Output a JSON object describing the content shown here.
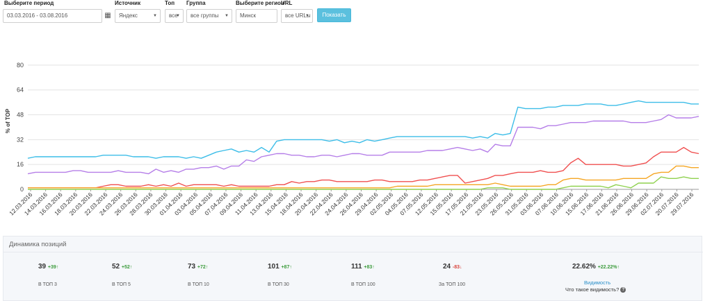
{
  "filters": {
    "period": {
      "label": "Выберите период",
      "value": "03.03.2016 - 03.08.2016",
      "calendar_icon": "calendar-icon"
    },
    "source": {
      "label": "Источник",
      "value": "Яндекс"
    },
    "top": {
      "label": "Топ",
      "value": "все"
    },
    "group": {
      "label": "Группа",
      "value": "все группы"
    },
    "region": {
      "label": "Выберите регион",
      "value": "Минск"
    },
    "url": {
      "label": "URL",
      "value": "все URLы"
    },
    "show_button": "Показать"
  },
  "chart_data": {
    "type": "line",
    "title": "",
    "xlabel": "",
    "ylabel": "% of TOP",
    "ylim": [
      0,
      88
    ],
    "yticks": [
      0,
      16,
      32,
      48,
      64,
      80
    ],
    "grid": true,
    "legend": "none",
    "xtick_labels": [
      "12.03.2016",
      "14.03.2016",
      "16.03.2016",
      "18.03.2016",
      "20.03.2016",
      "22.03.2016",
      "24.03.2016",
      "26.03.2016",
      "28.03.2016",
      "30.03.2016",
      "01.04.2016",
      "03.04.2016",
      "05.04.2016",
      "07.04.2016",
      "09.04.2016",
      "11.04.2016",
      "13.04.2016",
      "15.04.2016",
      "18.04.2016",
      "20.04.2016",
      "22.04.2016",
      "24.04.2016",
      "26.04.2016",
      "29.04.2016",
      "02.05.2016",
      "04.05.2016",
      "07.05.2016",
      "12.05.2016",
      "15.05.2016",
      "17.05.2016",
      "21.05.2016",
      "23.05.2016",
      "26.05.2016",
      "31.05.2016",
      "03.06.2016",
      "07.06.2016",
      "10.06.2016",
      "15.06.2016",
      "17.06.2016",
      "21.06.2016",
      "26.06.2016",
      "29.06.2016",
      "02.07.2016",
      "20.07.2016",
      "29.07.2016"
    ],
    "x": [
      0,
      1,
      2,
      3,
      4,
      5,
      6,
      7,
      8,
      9,
      10,
      11,
      12,
      13,
      14,
      15,
      16,
      17,
      18,
      19,
      20,
      21,
      22,
      23,
      24,
      25,
      26,
      27,
      28,
      29,
      30,
      31,
      32,
      33,
      34,
      35,
      36,
      37,
      38,
      39,
      40,
      41,
      42,
      43,
      44,
      45,
      46,
      47,
      48,
      49,
      50,
      51,
      52,
      53,
      54,
      55,
      56,
      57,
      58,
      59,
      60,
      61,
      62,
      63,
      64,
      65,
      66,
      67,
      68,
      69,
      70,
      71,
      72,
      73,
      74,
      75,
      76,
      77,
      78,
      79,
      80,
      81,
      82,
      83,
      84,
      85,
      86,
      87,
      88,
      89
    ],
    "series": [
      {
        "color": "#3cbde8",
        "values": [
          20,
          21,
          21,
          21,
          21,
          21,
          21,
          21,
          21,
          21,
          22,
          22,
          22,
          22,
          21,
          21,
          21,
          20,
          21,
          21,
          21,
          20,
          21,
          20,
          22,
          24,
          25,
          26,
          24,
          25,
          24,
          27,
          24,
          31,
          32,
          32,
          32,
          32,
          32,
          32,
          31,
          32,
          30,
          31,
          30,
          32,
          31,
          32,
          33,
          34,
          34,
          34,
          34,
          34,
          34,
          34,
          34,
          34,
          34,
          33,
          34,
          33,
          36,
          35,
          36,
          53,
          52,
          52,
          52,
          53,
          53,
          54,
          54,
          54,
          55,
          55,
          55,
          54,
          54,
          55,
          56,
          57,
          56,
          56,
          56,
          56,
          56,
          56,
          55,
          55
        ]
      },
      {
        "color": "#b57ee8",
        "values": [
          10,
          11,
          11,
          11,
          11,
          11,
          12,
          12,
          11,
          11,
          11,
          11,
          12,
          11,
          11,
          11,
          10,
          13,
          11,
          12,
          11,
          13,
          13,
          14,
          14,
          15,
          13,
          15,
          15,
          19,
          18,
          21,
          22,
          23,
          23,
          22,
          22,
          21,
          21,
          22,
          22,
          21,
          22,
          23,
          23,
          22,
          22,
          22,
          24,
          24,
          24,
          24,
          24,
          25,
          25,
          25,
          26,
          27,
          26,
          25,
          26,
          24,
          29,
          28,
          28,
          40,
          40,
          40,
          39,
          41,
          41,
          42,
          43,
          43,
          43,
          44,
          44,
          44,
          44,
          44,
          43,
          43,
          43,
          44,
          45,
          48,
          46,
          46,
          46,
          47
        ]
      },
      {
        "color": "#f04f4f",
        "values": [
          1,
          1,
          1,
          1,
          1,
          1,
          1,
          1,
          1,
          1,
          2,
          3,
          3,
          2,
          2,
          2,
          3,
          2,
          3,
          2,
          4,
          2,
          3,
          3,
          3,
          3,
          2,
          3,
          2,
          2,
          2,
          2,
          2,
          3,
          3,
          5,
          4,
          5,
          5,
          6,
          6,
          5,
          5,
          5,
          5,
          5,
          6,
          6,
          5,
          5,
          5,
          5,
          6,
          6,
          7,
          8,
          9,
          9,
          4,
          5,
          6,
          7,
          9,
          9,
          10,
          11,
          11,
          11,
          12,
          11,
          11,
          12,
          17,
          20,
          16,
          16,
          16,
          16,
          16,
          15,
          15,
          16,
          17,
          21,
          24,
          24,
          24,
          27,
          24,
          23
        ]
      },
      {
        "color": "#f5a623",
        "values": [
          1,
          1,
          1,
          1,
          1,
          1,
          1,
          1,
          1,
          1,
          1,
          1,
          1,
          1,
          1,
          1,
          1,
          1,
          1,
          1,
          1,
          1,
          1,
          1,
          1,
          1,
          1,
          1,
          1,
          1,
          1,
          1,
          1,
          1,
          1,
          1,
          1,
          1,
          1,
          1,
          1,
          1,
          1,
          1,
          1,
          1,
          1,
          1,
          1,
          2,
          2,
          2,
          2,
          2,
          3,
          3,
          3,
          3,
          3,
          3,
          3,
          3,
          4,
          3,
          2,
          2,
          2,
          2,
          2,
          3,
          3,
          6,
          7,
          7,
          6,
          6,
          6,
          6,
          6,
          7,
          7,
          7,
          7,
          10,
          11,
          11,
          15,
          15,
          14,
          14
        ]
      },
      {
        "color": "#8fd14f",
        "values": [
          0,
          0,
          0,
          0,
          0,
          0,
          0,
          0,
          0,
          0,
          0,
          0,
          0,
          0,
          0,
          0,
          0,
          0,
          0,
          0,
          0,
          0,
          0,
          0,
          0,
          0,
          0,
          0,
          0,
          0,
          0,
          0,
          0,
          0,
          0,
          0,
          0,
          0,
          0,
          0,
          0,
          0,
          0,
          0,
          0,
          0,
          0,
          0,
          0,
          0,
          0,
          0,
          0,
          0,
          0,
          0,
          0,
          0,
          0,
          0,
          0,
          1,
          1,
          1,
          0,
          0,
          0,
          0,
          0,
          0,
          0,
          1,
          2,
          2,
          2,
          2,
          2,
          1,
          3,
          2,
          1,
          4,
          4,
          4,
          8,
          7,
          7,
          8,
          7,
          7
        ]
      }
    ]
  },
  "dynamics": {
    "title": "Динамика позиций",
    "stats": [
      {
        "value": "39",
        "delta": "+39",
        "dir": "up",
        "label": "В ТОП 3"
      },
      {
        "value": "52",
        "delta": "+52",
        "dir": "up",
        "label": "В ТОП 5"
      },
      {
        "value": "73",
        "delta": "+72",
        "dir": "up",
        "label": "В ТОП 10"
      },
      {
        "value": "101",
        "delta": "+87",
        "dir": "up",
        "label": "В ТОП 30"
      },
      {
        "value": "111",
        "delta": "+83",
        "dir": "up",
        "label": "В ТОП 100"
      },
      {
        "value": "24",
        "delta": "-83",
        "dir": "down",
        "label": "За ТОП 100"
      }
    ],
    "visibility": {
      "value": "22.62%",
      "delta": "+22.22%",
      "dir": "up",
      "link": "Видимость",
      "question": "Что такое видимость?",
      "help_icon": "question-circle-icon"
    },
    "arrow_up": "↑",
    "arrow_down": "↓"
  }
}
